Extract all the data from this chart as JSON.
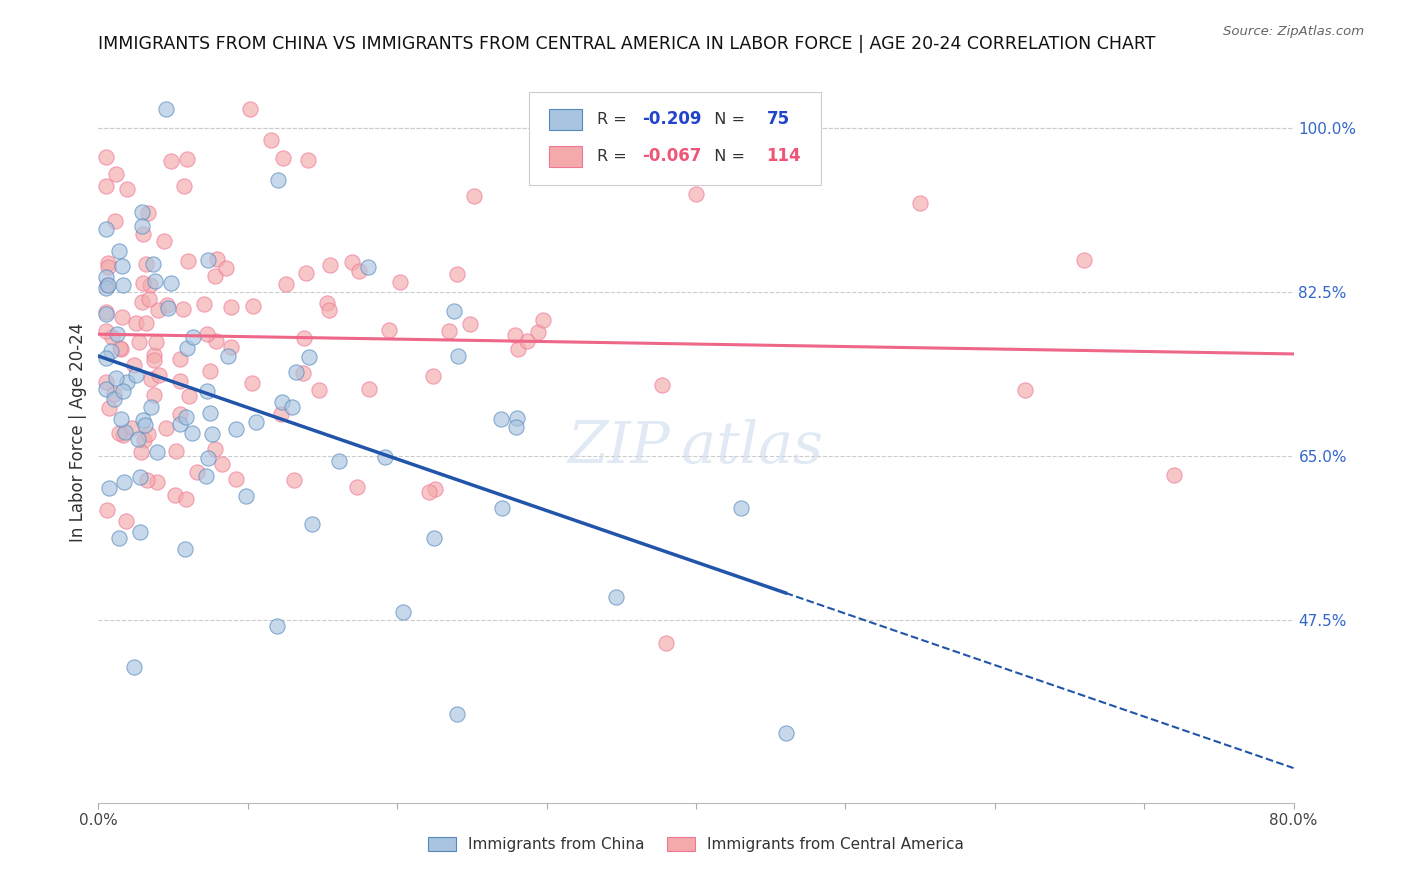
{
  "title": "IMMIGRANTS FROM CHINA VS IMMIGRANTS FROM CENTRAL AMERICA IN LABOR FORCE | AGE 20-24 CORRELATION CHART",
  "source": "Source: ZipAtlas.com",
  "ylabel": "In Labor Force | Age 20-24",
  "legend_china": "Immigrants from China",
  "legend_central": "Immigrants from Central America",
  "R_china": -0.209,
  "N_china": 75,
  "R_central": -0.067,
  "N_central": 114,
  "color_china_fill": "#A8C4E0",
  "color_china_edge": "#5588BB",
  "color_central_fill": "#F4AAAA",
  "color_central_edge": "#EE7799",
  "color_china_line": "#2255AA",
  "color_central_line": "#EE6688",
  "right_yticks": [
    0.475,
    0.65,
    0.825,
    1.0
  ],
  "right_ytick_labels": [
    "47.5%",
    "65.0%",
    "82.5%",
    "100.0%"
  ],
  "xlim": [
    0.0,
    0.8
  ],
  "ylim": [
    0.28,
    1.07
  ]
}
